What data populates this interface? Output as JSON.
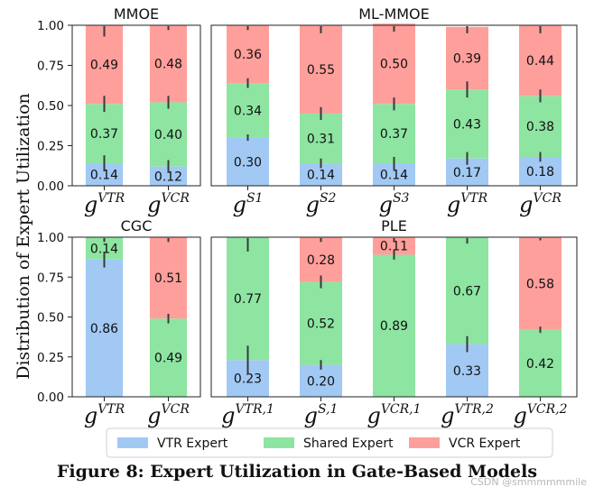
{
  "figure": {
    "ylabel": "Distribution of Expert Utilization",
    "caption": "Figure 8: Expert Utilization in Gate-Based Models",
    "watermark": "CSDN @smmmmmmile"
  },
  "legend": [
    {
      "label": "VTR Expert",
      "color": "#a1c9f4"
    },
    {
      "label": "Shared Expert",
      "color": "#8de5a1"
    },
    {
      "label": "VCR Expert",
      "color": "#ff9f9b"
    }
  ],
  "chart_data": [
    {
      "type": "bar",
      "stacked": true,
      "title": "MMOE",
      "categories": [
        {
          "base": "g",
          "sup": "VTR"
        },
        {
          "base": "g",
          "sup": "VCR"
        }
      ],
      "ylim": [
        0,
        1
      ],
      "yticks": [
        "0.00",
        "0.25",
        "0.50",
        "0.75",
        "1.00"
      ],
      "series": [
        {
          "name": "VTR Expert",
          "values": [
            0.14,
            0.12
          ],
          "labels": [
            "0.14",
            "0.12"
          ],
          "err": [
            0.05,
            0.04
          ]
        },
        {
          "name": "Shared Expert",
          "values": [
            0.37,
            0.4
          ],
          "labels": [
            "0.37",
            "0.40"
          ],
          "err": [
            0.05,
            0.04
          ]
        },
        {
          "name": "VCR Expert",
          "values": [
            0.49,
            0.48
          ],
          "labels": [
            "0.49",
            "0.48"
          ],
          "err": [
            0.07,
            0.03
          ]
        }
      ]
    },
    {
      "type": "bar",
      "stacked": true,
      "title": "ML-MMOE",
      "categories": [
        {
          "base": "g",
          "sup": "S1"
        },
        {
          "base": "g",
          "sup": "S2"
        },
        {
          "base": "g",
          "sup": "S3"
        },
        {
          "base": "g",
          "sup": "VTR"
        },
        {
          "base": "g",
          "sup": "VCR"
        }
      ],
      "ylim": [
        0,
        1
      ],
      "yticks": [
        "0.00",
        "0.25",
        "0.50",
        "0.75",
        "1.00"
      ],
      "series": [
        {
          "name": "VTR Expert",
          "values": [
            0.3,
            0.14,
            0.14,
            0.17,
            0.18
          ],
          "labels": [
            "0.30",
            "0.14",
            "0.14",
            "0.17",
            "0.18"
          ],
          "err": [
            0.02,
            0.03,
            0.04,
            0.04,
            0.03
          ]
        },
        {
          "name": "Shared Expert",
          "values": [
            0.34,
            0.31,
            0.37,
            0.43,
            0.38
          ],
          "labels": [
            "0.34",
            "0.31",
            "0.37",
            "0.43",
            "0.38"
          ],
          "err": [
            0.03,
            0.04,
            0.04,
            0.05,
            0.04
          ]
        },
        {
          "name": "VCR Expert",
          "values": [
            0.36,
            0.55,
            0.5,
            0.39,
            0.44
          ],
          "labels": [
            "0.36",
            "0.55",
            "0.50",
            "0.39",
            "0.44"
          ],
          "err": [
            0.03,
            0.05,
            0.05,
            0.04,
            0.05
          ]
        }
      ]
    },
    {
      "type": "bar",
      "stacked": true,
      "title": "CGC",
      "categories": [
        {
          "base": "g",
          "sup": "VTR"
        },
        {
          "base": "g",
          "sup": "VCR"
        }
      ],
      "ylim": [
        0,
        1
      ],
      "yticks": [
        "0.00",
        "0.25",
        "0.50",
        "0.75",
        "1.00"
      ],
      "series": [
        {
          "name": "VTR Expert",
          "values": [
            0.86,
            0.0
          ],
          "labels": [
            "0.86",
            ""
          ],
          "err": [
            0.05,
            0
          ]
        },
        {
          "name": "Shared Expert",
          "values": [
            0.14,
            0.49
          ],
          "labels": [
            "0.14",
            "0.49"
          ],
          "err": [
            0.03,
            0.03
          ]
        },
        {
          "name": "VCR Expert",
          "values": [
            0.0,
            0.51
          ],
          "labels": [
            "",
            "0.51"
          ],
          "err": [
            0,
            0.03
          ]
        }
      ]
    },
    {
      "type": "bar",
      "stacked": true,
      "title": "PLE",
      "categories": [
        {
          "base": "g",
          "sup": "VTR,1"
        },
        {
          "base": "g",
          "sup": "S,1"
        },
        {
          "base": "g",
          "sup": "VCR,1"
        },
        {
          "base": "g",
          "sup": "VTR,2"
        },
        {
          "base": "g",
          "sup": "VCR,2"
        }
      ],
      "ylim": [
        0,
        1
      ],
      "yticks": [
        "0.00",
        "0.25",
        "0.50",
        "0.75",
        "1.00"
      ],
      "series": [
        {
          "name": "VTR Expert",
          "values": [
            0.23,
            0.2,
            0.0,
            0.33,
            0.0
          ],
          "labels": [
            "0.23",
            "0.20",
            "",
            "0.33",
            ""
          ],
          "err": [
            0.09,
            0.03,
            0,
            0.05,
            0
          ]
        },
        {
          "name": "Shared Expert",
          "values": [
            0.77,
            0.52,
            0.89,
            0.67,
            0.42
          ],
          "labels": [
            "0.77",
            "0.52",
            "0.89",
            "0.67",
            "0.42"
          ],
          "err": [
            0.09,
            0.04,
            0.03,
            0.04,
            0.02
          ]
        },
        {
          "name": "VCR Expert",
          "values": [
            0.0,
            0.28,
            0.11,
            0.0,
            0.58
          ],
          "labels": [
            "",
            "0.28",
            "0.11",
            "",
            "0.58"
          ],
          "err": [
            0,
            0.03,
            0.03,
            0,
            0.02
          ]
        }
      ]
    }
  ]
}
